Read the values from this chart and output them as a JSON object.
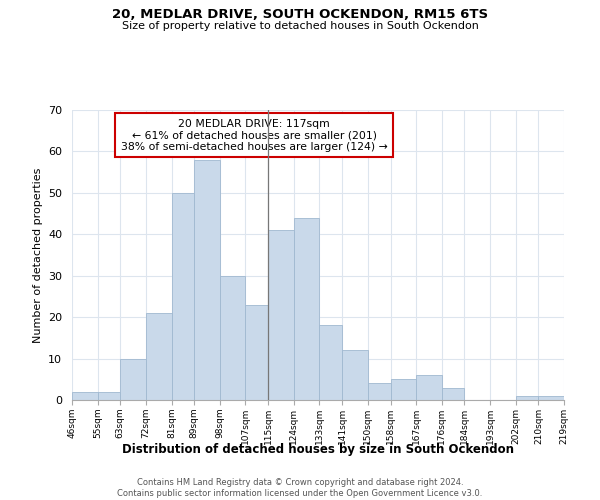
{
  "title1": "20, MEDLAR DRIVE, SOUTH OCKENDON, RM15 6TS",
  "title2": "Size of property relative to detached houses in South Ockendon",
  "xlabel": "Distribution of detached houses by size in South Ockendon",
  "ylabel": "Number of detached properties",
  "bin_edges": [
    46,
    55,
    63,
    72,
    81,
    89,
    98,
    107,
    115,
    124,
    133,
    141,
    150,
    158,
    167,
    176,
    184,
    193,
    202,
    210,
    219
  ],
  "bin_counts": [
    2,
    2,
    10,
    21,
    50,
    58,
    30,
    23,
    41,
    44,
    18,
    12,
    4,
    5,
    6,
    3,
    0,
    0,
    1,
    1
  ],
  "bar_color": "#c9d9ea",
  "bar_edge_color": "#a0b8d0",
  "property_line_x": 115,
  "property_line_color": "#777777",
  "annotation_text": "20 MEDLAR DRIVE: 117sqm\n← 61% of detached houses are smaller (201)\n38% of semi-detached houses are larger (124) →",
  "annotation_box_color": "#ffffff",
  "annotation_box_edge": "#cc0000",
  "ylim": [
    0,
    70
  ],
  "yticks": [
    0,
    10,
    20,
    30,
    40,
    50,
    60,
    70
  ],
  "tick_labels": [
    "46sqm",
    "55sqm",
    "63sqm",
    "72sqm",
    "81sqm",
    "89sqm",
    "98sqm",
    "107sqm",
    "115sqm",
    "124sqm",
    "133sqm",
    "141sqm",
    "150sqm",
    "158sqm",
    "167sqm",
    "176sqm",
    "184sqm",
    "193sqm",
    "202sqm",
    "210sqm",
    "219sqm"
  ],
  "footer1": "Contains HM Land Registry data © Crown copyright and database right 2024.",
  "footer2": "Contains public sector information licensed under the Open Government Licence v3.0.",
  "background_color": "#ffffff",
  "grid_color": "#dde5ee"
}
